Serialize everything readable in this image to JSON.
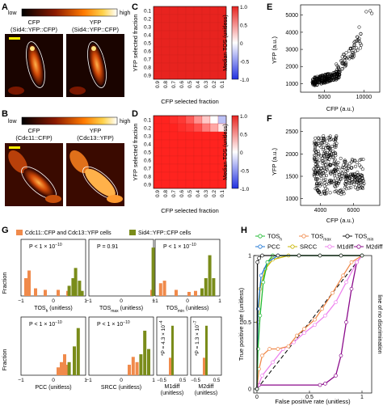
{
  "panel_letters": {
    "a": "A",
    "b": "B",
    "c": "C",
    "d": "D",
    "e": "E",
    "f": "F",
    "g": "G",
    "h": "H"
  },
  "colorbar": {
    "low": "low",
    "high": "high"
  },
  "panel_a": {
    "cfp_line1": "CFP",
    "cfp_line2": "(Sid4::YFP::CFP)",
    "yfp_line1": "YFP",
    "yfp_line2": "(Sid4::YFP::CFP)"
  },
  "panel_b": {
    "cfp_line1": "CFP",
    "cfp_line2": "(Cdc11::CFP)",
    "yfp_line1": "YFP",
    "yfp_line2": "(Cdc13::YFP)"
  },
  "heatmap": {
    "y_ticks": [
      "0.1",
      "0.2",
      "0.3",
      "0.4",
      "0.5",
      "0.6",
      "0.7",
      "0.8",
      "0.9"
    ],
    "x_ticks": [
      "0.9",
      "0.8",
      "0.7",
      "0.6",
      "0.5",
      "0.4",
      "0.3",
      "0.2",
      "0.1"
    ],
    "ylabel": "YFP selected fraction",
    "xlabel": "CFP selected fraction",
    "cbar_label": "Median TOS (unitless)",
    "cbar_ticks": [
      "1.0",
      "0.5",
      "0",
      "-0.5",
      "-1.0"
    ]
  },
  "chart_data": [
    {
      "type": "heatmap",
      "panel": "C",
      "note": "Median TOS across thresholds, all cells near 1",
      "cell_color_c": "#e8231f"
    },
    {
      "type": "heatmap",
      "panel": "D",
      "note": "Median TOS; top-right cells decrease toward -1",
      "top_rows_d": [
        [
          1,
          1,
          0.95,
          0.9,
          0.75,
          0.5,
          0.25,
          0.0,
          -0.3
        ],
        [
          1,
          1,
          1,
          0.95,
          0.9,
          0.8,
          0.6,
          0.4,
          0.1
        ]
      ]
    },
    {
      "type": "scatter",
      "panel": "E",
      "xlabel": "CFP (a.u.)",
      "ylabel": "YFP (a.u.)",
      "x_ticks": [
        "5000",
        "10000"
      ],
      "y_ticks": [
        "1000",
        "2000",
        "3000",
        "4000",
        "5000"
      ]
    },
    {
      "type": "scatter",
      "panel": "F",
      "xlabel": "CFP (a.u.)",
      "ylabel": "YFP (a.u.)",
      "x_ticks": [
        "4000",
        "6000"
      ],
      "y_ticks": [
        "1000",
        "1500",
        "2000",
        "2500"
      ]
    },
    {
      "type": "bar",
      "panel": "G",
      "ylabel": "Fraction"
    },
    {
      "type": "line",
      "panel": "H",
      "xlabel": "False positive rate (unitless)",
      "ylabel": "True positive rate (unitless)"
    }
  ],
  "panel_g": {
    "legend_orange": "Cdc11::CFP and Cdc13::YFP cells",
    "legend_green": "Sid4::YFP::CFP cells",
    "ylabel": "Fraction",
    "p_top": [
      "P < 1 × 10",
      "P = 0.91",
      "P < 1 × 10"
    ],
    "exp": "−10",
    "p_bottom": [
      "P < 1 × 10",
      "P < 1 × 10"
    ],
    "xl_top": [
      "TOS",
      "TOS",
      "TOS"
    ],
    "xl_top_sub": [
      "h",
      "max",
      "min"
    ],
    "xl_top_suffix": " (unitless)",
    "xl_bottom": [
      "PCC (unitless)",
      "SRCC (unitless)"
    ],
    "m1_label": "M1diff",
    "m2_label": "M2diff",
    "unitless": "(unitless)",
    "m1_p": "*P = 4.3 × 10",
    "m1_exp": "−4",
    "m2_p": "*P = 1.3 × 10",
    "m2_exp": "−7",
    "ticks_x": [
      "−1",
      "0",
      "1"
    ],
    "ticks_small": [
      "−0.5",
      "0.5"
    ]
  },
  "panel_h": {
    "legend": [
      {
        "label": "TOS",
        "sub": "h",
        "color": "#22bb33"
      },
      {
        "label": "TOS",
        "sub": "max",
        "color": "#f08a4b"
      },
      {
        "label": "TOS",
        "sub": "min",
        "color": "#111111"
      },
      {
        "label": "PCC",
        "sub": "",
        "color": "#1f77d4"
      },
      {
        "label": "SRCC",
        "sub": "",
        "color": "#c8b400"
      },
      {
        "label": "M1diff",
        "sub": "",
        "color": "#ee82ee"
      },
      {
        "label": "M2diff",
        "sub": "",
        "color": "#8b0a8b"
      }
    ],
    "nodisc": "line of no discrimination",
    "xlabel": "False positive rate (unitless)",
    "ylabel": "True positive rate (unitless)",
    "x_ticks": [
      "0",
      "0.5",
      "1"
    ],
    "y_ticks": [
      "0",
      "0.5",
      "1"
    ]
  }
}
